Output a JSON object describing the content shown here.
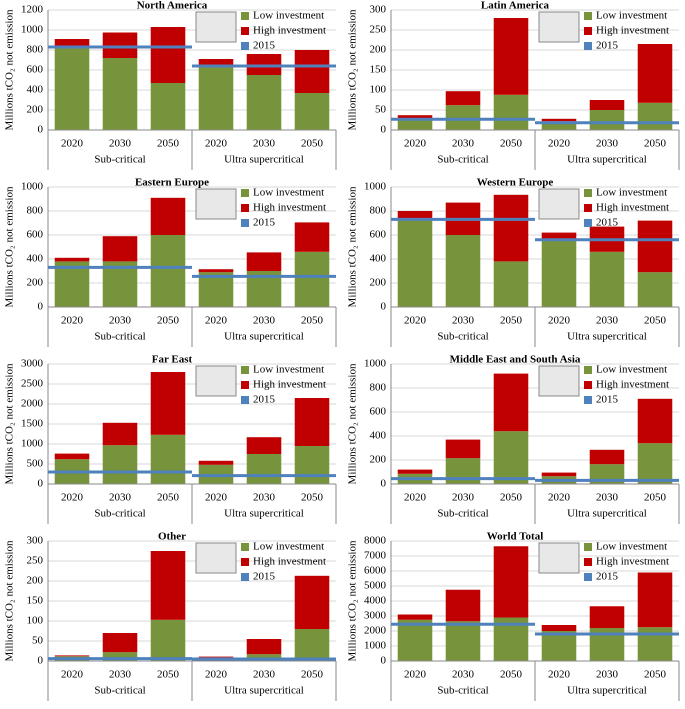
{
  "chart_data": [
    {
      "type": "bar",
      "title": "North America",
      "ylabel": "Millions tCO₂ not emission",
      "categories": [
        "2020",
        "2030",
        "2050",
        "2020",
        "2030",
        "2050"
      ],
      "groups": [
        "Sub-critical",
        "Ultra supercritical"
      ],
      "series": [
        {
          "name": "Low investment",
          "color": "#77933c",
          "values": [
            830,
            720,
            470,
            640,
            550,
            370
          ]
        },
        {
          "name": "High investment",
          "color": "#c00000",
          "values": [
            80,
            255,
            560,
            70,
            210,
            430
          ]
        }
      ],
      "baseline": {
        "name": "2015",
        "color": "#4f81bd",
        "values": [
          830,
          640
        ]
      },
      "ylim": [
        0,
        1200
      ],
      "yticks": [
        0,
        200,
        400,
        600,
        800,
        1000,
        1200
      ],
      "grid": true,
      "stacked": true
    },
    {
      "type": "bar",
      "title": "Latin America",
      "ylabel": "Millions tCO₂ not emission",
      "categories": [
        "2020",
        "2030",
        "2050",
        "2020",
        "2030",
        "2050"
      ],
      "groups": [
        "Sub-critical",
        "Ultra supercritical"
      ],
      "series": [
        {
          "name": "Low investment",
          "color": "#77933c",
          "values": [
            28,
            62,
            88,
            22,
            50,
            68
          ]
        },
        {
          "name": "High investment",
          "color": "#c00000",
          "values": [
            9,
            35,
            192,
            6,
            25,
            147
          ]
        }
      ],
      "baseline": {
        "name": "2015",
        "color": "#4f81bd",
        "values": [
          27,
          18
        ]
      },
      "ylim": [
        0,
        300
      ],
      "yticks": [
        0,
        50,
        100,
        150,
        200,
        250,
        300
      ],
      "grid": true,
      "stacked": true
    },
    {
      "type": "bar",
      "title": "Eastern Europe",
      "ylabel": "Millions tCO₂ not emission",
      "categories": [
        "2020",
        "2030",
        "2050",
        "2020",
        "2030",
        "2050"
      ],
      "groups": [
        "Sub-critical",
        "Ultra supercritical"
      ],
      "series": [
        {
          "name": "Low investment",
          "color": "#77933c",
          "values": [
            380,
            380,
            600,
            290,
            300,
            460
          ]
        },
        {
          "name": "High investment",
          "color": "#c00000",
          "values": [
            30,
            210,
            310,
            25,
            155,
            245
          ]
        }
      ],
      "baseline": {
        "name": "2015",
        "color": "#4f81bd",
        "values": [
          330,
          255
        ]
      },
      "ylim": [
        0,
        1000
      ],
      "yticks": [
        0,
        200,
        400,
        600,
        800,
        1000
      ],
      "grid": true,
      "stacked": true
    },
    {
      "type": "bar",
      "title": "Western Europe",
      "ylabel": "Millions tCO₂ not emission",
      "categories": [
        "2020",
        "2030",
        "2050",
        "2020",
        "2030",
        "2050"
      ],
      "groups": [
        "Sub-critical",
        "Ultra supercritical"
      ],
      "series": [
        {
          "name": "Low investment",
          "color": "#77933c",
          "values": [
            730,
            600,
            380,
            560,
            460,
            290
          ]
        },
        {
          "name": "High investment",
          "color": "#c00000",
          "values": [
            70,
            270,
            555,
            60,
            210,
            430
          ]
        }
      ],
      "baseline": {
        "name": "2015",
        "color": "#4f81bd",
        "values": [
          730,
          560
        ]
      },
      "ylim": [
        0,
        1000
      ],
      "yticks": [
        0,
        200,
        400,
        600,
        800,
        1000
      ],
      "grid": true,
      "stacked": true
    },
    {
      "type": "bar",
      "title": "Far East",
      "ylabel": "Millions tCO₂ not emission",
      "categories": [
        "2020",
        "2030",
        "2050",
        "2020",
        "2030",
        "2050"
      ],
      "groups": [
        "Sub-critical",
        "Ultra supercritical"
      ],
      "series": [
        {
          "name": "Low investment",
          "color": "#77933c",
          "values": [
            620,
            970,
            1230,
            480,
            750,
            950
          ]
        },
        {
          "name": "High investment",
          "color": "#c00000",
          "values": [
            140,
            560,
            1570,
            100,
            420,
            1200
          ]
        }
      ],
      "baseline": {
        "name": "2015",
        "color": "#4f81bd",
        "values": [
          300,
          210
        ]
      },
      "ylim": [
        0,
        3000
      ],
      "yticks": [
        0,
        500,
        1000,
        1500,
        2000,
        2500,
        3000
      ],
      "grid": true,
      "stacked": true
    },
    {
      "type": "bar",
      "title": "Middle East and South Asia",
      "ylabel": "Millions tCO₂ not emission",
      "categories": [
        "2020",
        "2030",
        "2050",
        "2020",
        "2030",
        "2050"
      ],
      "groups": [
        "Sub-critical",
        "Ultra supercritical"
      ],
      "series": [
        {
          "name": "Low investment",
          "color": "#77933c",
          "values": [
            85,
            215,
            440,
            65,
            165,
            340
          ]
        },
        {
          "name": "High investment",
          "color": "#c00000",
          "values": [
            35,
            155,
            480,
            30,
            120,
            370
          ]
        }
      ],
      "baseline": {
        "name": "2015",
        "color": "#4f81bd",
        "values": [
          45,
          30
        ]
      },
      "ylim": [
        0,
        1000
      ],
      "yticks": [
        0,
        200,
        400,
        600,
        800,
        1000
      ],
      "grid": true,
      "stacked": true
    },
    {
      "type": "bar",
      "title": "Other",
      "ylabel": "Millions tCO₂ not emission",
      "categories": [
        "2020",
        "2030",
        "2050",
        "2020",
        "2030",
        "2050"
      ],
      "groups": [
        "Sub-critical",
        "Ultra supercritical"
      ],
      "series": [
        {
          "name": "Low investment",
          "color": "#77933c",
          "values": [
            12,
            22,
            103,
            9,
            17,
            80
          ]
        },
        {
          "name": "High investment",
          "color": "#c00000",
          "values": [
            2,
            48,
            172,
            2,
            38,
            133
          ]
        }
      ],
      "baseline": {
        "name": "2015",
        "color": "#4f81bd",
        "values": [
          6,
          5
        ]
      },
      "ylim": [
        0,
        300
      ],
      "yticks": [
        0,
        50,
        100,
        150,
        200,
        250,
        300
      ],
      "grid": true,
      "stacked": true
    },
    {
      "type": "bar",
      "title": "World Total",
      "ylabel": "Millions tCO₂ not emission",
      "categories": [
        "2020",
        "2030",
        "2050",
        "2020",
        "2030",
        "2050"
      ],
      "groups": [
        "Sub-critical",
        "Ultra supercritical"
      ],
      "series": [
        {
          "name": "Low investment",
          "color": "#77933c",
          "values": [
            2750,
            2650,
            2900,
            2000,
            2200,
            2250
          ]
        },
        {
          "name": "High investment",
          "color": "#c00000",
          "values": [
            350,
            2100,
            4750,
            400,
            1450,
            3650
          ]
        }
      ],
      "baseline": {
        "name": "2015",
        "color": "#4f81bd",
        "values": [
          2450,
          1800
        ]
      },
      "ylim": [
        0,
        8000
      ],
      "yticks": [
        0,
        1000,
        2000,
        3000,
        4000,
        5000,
        6000,
        7000,
        8000
      ],
      "grid": true,
      "stacked": true
    }
  ]
}
